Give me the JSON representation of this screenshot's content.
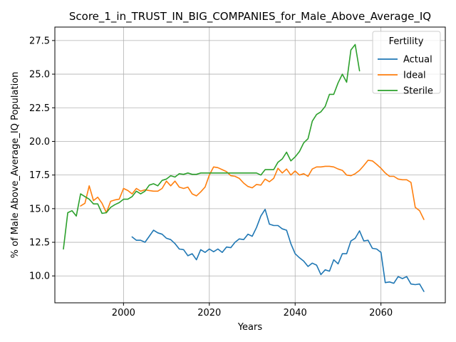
{
  "chart_data": {
    "type": "line",
    "title": "Score_1_in_TRUST_IN_BIG_COMPANIES_for_Male_Above_Average_IQ",
    "xlabel": "Years",
    "ylabel": "% of Male Above_Average_IQ Population",
    "xlim": [
      1984,
      2075
    ],
    "ylim": [
      8.0,
      28.5
    ],
    "xticks": [
      2000,
      2020,
      2040,
      2060
    ],
    "yticks": [
      10.0,
      12.5,
      15.0,
      17.5,
      20.0,
      22.5,
      25.0,
      27.5
    ],
    "ytick_labels": [
      "10.0",
      "12.5",
      "15.0",
      "17.5",
      "20.0",
      "22.5",
      "25.0",
      "27.5"
    ],
    "xtick_labels": [
      "2000",
      "2020",
      "2040",
      "2060"
    ],
    "grid": true,
    "legend": {
      "title": "Fertility",
      "placement": "top-right"
    },
    "series": [
      {
        "name": "Actual",
        "color": "#1f77b4",
        "x": [
          2002,
          2003,
          2004,
          2005,
          2006,
          2007,
          2008,
          2009,
          2010,
          2011,
          2012,
          2013,
          2014,
          2015,
          2016,
          2017,
          2018,
          2019,
          2020,
          2021,
          2022,
          2023,
          2024,
          2025,
          2026,
          2027,
          2028,
          2029,
          2030,
          2031,
          2032,
          2033,
          2034,
          2035,
          2036,
          2037,
          2038,
          2039,
          2040,
          2041,
          2042,
          2043,
          2044,
          2045,
          2046,
          2047,
          2048,
          2049,
          2050,
          2051,
          2052,
          2053,
          2054,
          2055,
          2056,
          2057,
          2058,
          2059,
          2060,
          2061,
          2062,
          2063,
          2064,
          2065,
          2066,
          2067,
          2068,
          2069,
          2070
        ],
        "values": [
          12.9,
          12.65,
          12.65,
          12.5,
          12.95,
          13.4,
          13.2,
          13.1,
          12.8,
          12.7,
          12.4,
          12.0,
          11.95,
          11.5,
          11.65,
          11.2,
          11.95,
          11.75,
          12.0,
          11.8,
          12.0,
          11.75,
          12.15,
          12.1,
          12.5,
          12.75,
          12.7,
          13.1,
          12.95,
          13.6,
          14.45,
          14.95,
          13.85,
          13.75,
          13.75,
          13.5,
          13.4,
          12.4,
          11.65,
          11.35,
          11.1,
          10.7,
          10.95,
          10.8,
          10.1,
          10.45,
          10.35,
          11.2,
          10.9,
          11.65,
          11.65,
          12.6,
          12.8,
          13.35,
          12.6,
          12.65,
          12.05,
          12.0,
          11.75,
          9.5,
          9.55,
          9.45,
          9.95,
          9.8,
          9.95,
          9.4,
          9.35,
          9.4,
          8.85
        ]
      },
      {
        "name": "Ideal",
        "color": "#ff7f0e",
        "x": [
          1990,
          1991,
          1992,
          1993,
          1994,
          1995,
          1996,
          1997,
          1998,
          1999,
          2000,
          2001,
          2002,
          2003,
          2004,
          2005,
          2006,
          2007,
          2008,
          2009,
          2010,
          2011,
          2012,
          2013,
          2014,
          2015,
          2016,
          2017,
          2018,
          2019,
          2020,
          2021,
          2022,
          2023,
          2024,
          2025,
          2026,
          2027,
          2028,
          2029,
          2030,
          2031,
          2032,
          2033,
          2034,
          2035,
          2036,
          2037,
          2038,
          2039,
          2040,
          2041,
          2042,
          2043,
          2044,
          2045,
          2046,
          2047,
          2048,
          2049,
          2050,
          2051,
          2052,
          2053,
          2054,
          2055,
          2056,
          2057,
          2058,
          2059,
          2060,
          2061,
          2062,
          2063,
          2064,
          2065,
          2066,
          2067,
          2068,
          2069,
          2070
        ],
        "values": [
          15.2,
          15.4,
          16.7,
          15.6,
          15.85,
          15.4,
          14.7,
          15.55,
          15.65,
          15.7,
          16.5,
          16.35,
          16.1,
          16.5,
          16.3,
          16.4,
          16.35,
          16.3,
          16.3,
          16.5,
          17.05,
          16.7,
          17.05,
          16.6,
          16.5,
          16.6,
          16.1,
          15.95,
          16.25,
          16.6,
          17.5,
          18.1,
          18.05,
          17.9,
          17.75,
          17.45,
          17.4,
          17.25,
          16.9,
          16.65,
          16.55,
          16.8,
          16.75,
          17.2,
          17.0,
          17.25,
          18.0,
          17.65,
          17.95,
          17.5,
          17.8,
          17.5,
          17.6,
          17.4,
          17.95,
          18.1,
          18.1,
          18.15,
          18.15,
          18.1,
          17.95,
          17.85,
          17.5,
          17.45,
          17.6,
          17.85,
          18.2,
          18.6,
          18.55,
          18.3,
          18.0,
          17.65,
          17.4,
          17.4,
          17.2,
          17.15,
          17.15,
          16.95,
          15.1,
          14.85,
          14.2
        ]
      },
      {
        "name": "Sterile",
        "color": "#2ca02c",
        "x": [
          1986,
          1987,
          1988,
          1989,
          1990,
          1991,
          1992,
          1993,
          1994,
          1995,
          1996,
          1997,
          1998,
          1999,
          2000,
          2001,
          2002,
          2003,
          2004,
          2005,
          2006,
          2007,
          2008,
          2009,
          2010,
          2011,
          2012,
          2013,
          2014,
          2015,
          2016,
          2017,
          2018,
          2019,
          2020,
          2021,
          2022,
          2023,
          2024,
          2025,
          2026,
          2027,
          2028,
          2029,
          2030,
          2031,
          2032,
          2033,
          2034,
          2035,
          2036,
          2037,
          2038,
          2039,
          2040,
          2041,
          2042,
          2043,
          2044,
          2045,
          2046,
          2047,
          2048,
          2049,
          2050,
          2051,
          2052,
          2053,
          2054,
          2055
        ],
        "values": [
          12.0,
          14.7,
          14.85,
          14.45,
          16.1,
          15.9,
          15.7,
          15.35,
          15.35,
          14.65,
          14.7,
          15.1,
          15.3,
          15.45,
          15.7,
          15.7,
          15.9,
          16.3,
          16.1,
          16.3,
          16.75,
          16.85,
          16.7,
          17.1,
          17.2,
          17.45,
          17.35,
          17.6,
          17.55,
          17.65,
          17.55,
          17.55,
          17.65,
          17.65,
          17.65,
          17.65,
          17.65,
          17.65,
          17.65,
          17.65,
          17.65,
          17.65,
          17.65,
          17.65,
          17.65,
          17.65,
          17.5,
          17.9,
          17.9,
          17.9,
          18.45,
          18.7,
          19.2,
          18.55,
          18.85,
          19.25,
          19.9,
          20.2,
          21.5,
          22.0,
          22.2,
          22.6,
          23.5,
          23.5,
          24.35,
          25.0,
          24.4,
          26.8,
          27.2,
          25.25
        ]
      }
    ]
  }
}
